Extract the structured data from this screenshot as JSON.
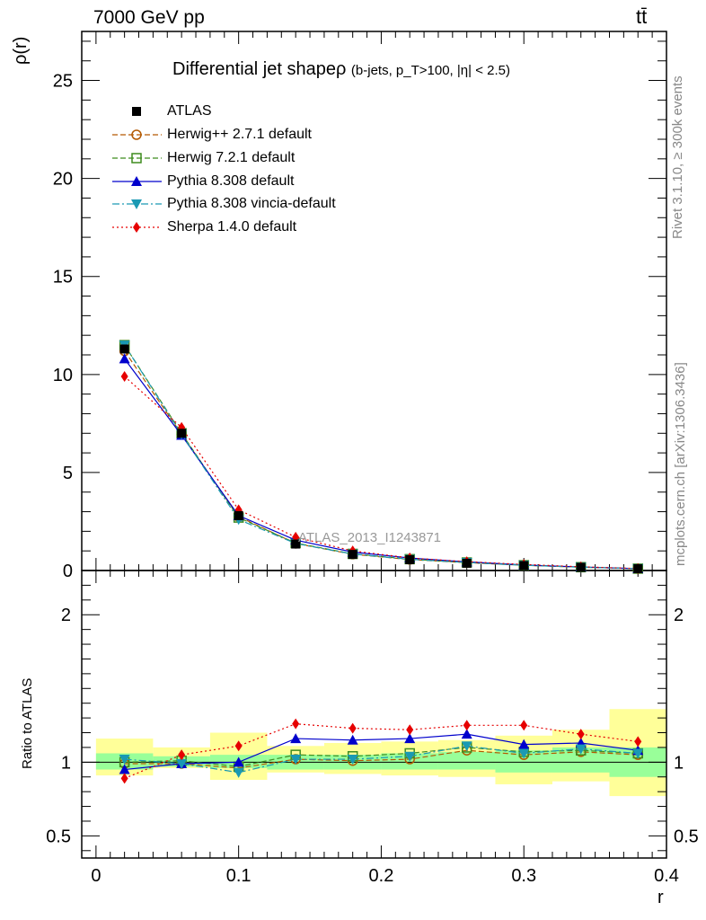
{
  "header": {
    "energy_label": "7000 GeV pp",
    "process_label": "tt̄"
  },
  "side_labels": {
    "rivet": "Rivet 3.1.10, ≥ 300k events",
    "mcplots": "mcplots.cern.ch [arXiv:1306.3436]"
  },
  "title": {
    "main": "Differential jet shapeρ",
    "cuts": "(b-jets, p_T>100, |η| < 2.5)"
  },
  "watermark": "ATLAS_2013_I1243871",
  "colors": {
    "atlas": "#000000",
    "herwigpp": "#b35900",
    "herwig7": "#3f8c1f",
    "pythia": "#0000cc",
    "vincia": "#1a99b3",
    "sherpa": "#e60000",
    "band_outer": "#ffff99",
    "band_inner": "#99ff99"
  },
  "chart_data": [
    {
      "type": "line",
      "panel": "main",
      "ylabel": "ρ(r)",
      "xlim": [
        -0.01,
        0.4
      ],
      "ylim": [
        0,
        27.5
      ],
      "yticks": [
        0,
        5,
        10,
        15,
        20,
        25
      ],
      "x": [
        0.02,
        0.06,
        0.1,
        0.14,
        0.18,
        0.22,
        0.26,
        0.3,
        0.34,
        0.38
      ],
      "bin_edges": [
        0.0,
        0.04,
        0.08,
        0.12,
        0.16,
        0.2,
        0.24,
        0.28,
        0.32,
        0.36,
        0.4
      ],
      "series": [
        {
          "key": "atlas",
          "name": "ATLAS",
          "marker": "square-filled",
          "values": [
            11.3,
            7.0,
            2.8,
            1.35,
            0.82,
            0.55,
            0.37,
            0.25,
            0.16,
            0.09
          ]
        },
        {
          "key": "herwigpp",
          "name": "Herwig++ 2.7.1 default",
          "marker": "circle-open",
          "dash": "6,3",
          "values": [
            11.2,
            6.95,
            2.75,
            1.38,
            0.83,
            0.56,
            0.4,
            0.27,
            0.17,
            0.095
          ]
        },
        {
          "key": "herwig7",
          "name": "Herwig 7.2.1 default",
          "marker": "square-open",
          "dash": "6,3",
          "values": [
            11.5,
            7.0,
            2.7,
            1.4,
            0.85,
            0.58,
            0.41,
            0.27,
            0.17,
            0.096
          ]
        },
        {
          "key": "pythia",
          "name": "Pythia 8.308 default",
          "marker": "triangle-up",
          "dash": "",
          "values": [
            10.8,
            6.9,
            2.8,
            1.55,
            0.94,
            0.64,
            0.44,
            0.28,
            0.18,
            0.095
          ]
        },
        {
          "key": "vincia",
          "name": "Pythia 8.308 vincia-default",
          "marker": "triangle-down",
          "dash": "8,3,2,3",
          "values": [
            11.5,
            6.95,
            2.6,
            1.38,
            0.84,
            0.57,
            0.41,
            0.27,
            0.17,
            0.095
          ]
        },
        {
          "key": "sherpa",
          "name": "Sherpa 1.4.0 default",
          "marker": "diamond",
          "dash": "2,3",
          "values": [
            9.9,
            7.3,
            3.1,
            1.7,
            1.0,
            0.64,
            0.45,
            0.31,
            0.19,
            0.1
          ]
        }
      ]
    },
    {
      "type": "line",
      "panel": "ratio",
      "ylabel": "Ratio to ATLAS",
      "xlabel": "r",
      "xlim": [
        -0.01,
        0.4
      ],
      "ylim": [
        0.35,
        2.3
      ],
      "yticks": [
        0.5,
        1,
        2
      ],
      "ytick_labels": [
        "0.5",
        "1",
        "2"
      ],
      "xticks": [
        0,
        0.1,
        0.2,
        0.3,
        0.4
      ],
      "xtick_labels": [
        "0",
        "0.1",
        "0.2",
        "0.3",
        "0.4"
      ],
      "x": [
        0.02,
        0.06,
        0.1,
        0.14,
        0.18,
        0.22,
        0.26,
        0.3,
        0.34,
        0.38
      ],
      "bin_edges": [
        0.0,
        0.04,
        0.08,
        0.12,
        0.16,
        0.2,
        0.24,
        0.28,
        0.32,
        0.36,
        0.4
      ],
      "band_inner": {
        "low": [
          0.95,
          0.97,
          0.96,
          0.95,
          0.95,
          0.95,
          0.95,
          0.93,
          0.93,
          0.9
        ],
        "high": [
          1.06,
          1.04,
          1.05,
          1.05,
          1.05,
          1.06,
          1.07,
          1.08,
          1.1,
          1.1
        ]
      },
      "band_outer": {
        "low": [
          0.91,
          0.96,
          0.88,
          0.93,
          0.92,
          0.91,
          0.9,
          0.85,
          0.87,
          0.77
        ],
        "high": [
          1.16,
          1.1,
          1.2,
          1.11,
          1.13,
          1.14,
          1.15,
          1.18,
          1.22,
          1.36
        ]
      },
      "series": [
        {
          "key": "herwigpp",
          "name": "Herwig++ 2.7.1 default",
          "marker": "circle-open",
          "dash": "6,3",
          "values": [
            0.99,
            0.99,
            0.96,
            1.02,
            1.01,
            1.02,
            1.08,
            1.05,
            1.07,
            1.05
          ]
        },
        {
          "key": "herwig7",
          "name": "Herwig 7.2.1 default",
          "marker": "square-open",
          "dash": "6,3",
          "values": [
            1.0,
            1.01,
            0.97,
            1.05,
            1.04,
            1.06,
            1.1,
            1.07,
            1.08,
            1.06
          ]
        },
        {
          "key": "pythia",
          "name": "Pythia 8.308 default",
          "marker": "triangle-up",
          "dash": "",
          "values": [
            0.95,
            0.99,
            1.0,
            1.16,
            1.15,
            1.16,
            1.19,
            1.12,
            1.13,
            1.08
          ]
        },
        {
          "key": "vincia",
          "name": "Pythia 8.308 vincia-default",
          "marker": "triangle-down",
          "dash": "8,3,2,3",
          "values": [
            1.02,
            0.99,
            0.93,
            1.02,
            1.02,
            1.04,
            1.11,
            1.06,
            1.09,
            1.06
          ]
        },
        {
          "key": "sherpa",
          "name": "Sherpa 1.4.0 default",
          "marker": "diamond",
          "dash": "2,3",
          "values": [
            0.89,
            1.05,
            1.11,
            1.26,
            1.23,
            1.22,
            1.25,
            1.25,
            1.19,
            1.14
          ]
        }
      ]
    }
  ]
}
